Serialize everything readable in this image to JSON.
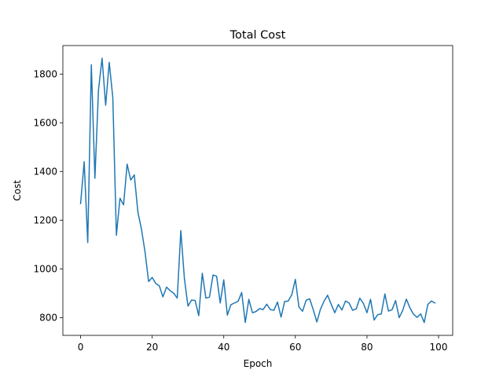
{
  "chart_data": {
    "type": "line",
    "title": "Total Cost",
    "xlabel": "Epoch",
    "ylabel": "Cost",
    "xlim": [
      -4.95,
      103.95
    ],
    "ylim": [
      727,
      1917
    ],
    "xticks": [
      0,
      20,
      40,
      60,
      80,
      100
    ],
    "yticks": [
      800,
      1000,
      1200,
      1400,
      1600,
      1800
    ],
    "grid": false,
    "legend": "none",
    "series": [
      {
        "color": "#1f77b4",
        "x": [
          0,
          1,
          2,
          3,
          4,
          5,
          6,
          7,
          8,
          9,
          10,
          11,
          12,
          13,
          14,
          15,
          16,
          17,
          18,
          19,
          20,
          21,
          22,
          23,
          24,
          25,
          26,
          27,
          28,
          29,
          30,
          31,
          32,
          33,
          34,
          35,
          36,
          37,
          38,
          39,
          40,
          41,
          42,
          43,
          44,
          45,
          46,
          47,
          48,
          49,
          50,
          51,
          52,
          53,
          54,
          55,
          56,
          57,
          58,
          59,
          60,
          61,
          62,
          63,
          64,
          65,
          66,
          67,
          68,
          69,
          70,
          71,
          72,
          73,
          74,
          75,
          76,
          77,
          78,
          79,
          80,
          81,
          82,
          83,
          84,
          85,
          86,
          87,
          88,
          89,
          90,
          91,
          92,
          93,
          94,
          95,
          96,
          97,
          98,
          99
        ],
        "values": [
          1268,
          1440,
          1108,
          1838,
          1372,
          1735,
          1865,
          1672,
          1848,
          1703,
          1138,
          1290,
          1263,
          1430,
          1365,
          1386,
          1234,
          1163,
          1070,
          948,
          965,
          940,
          930,
          885,
          925,
          911,
          900,
          880,
          1157,
          960,
          847,
          872,
          870,
          808,
          982,
          880,
          884,
          975,
          970,
          860,
          955,
          810,
          853,
          860,
          867,
          903,
          780,
          875,
          820,
          825,
          837,
          833,
          855,
          833,
          830,
          864,
          802,
          866,
          868,
          894,
          957,
          843,
          826,
          871,
          877,
          832,
          782,
          834,
          867,
          892,
          855,
          820,
          854,
          831,
          868,
          860,
          830,
          836,
          880,
          858,
          820,
          875,
          790,
          812,
          815,
          897,
          827,
          832,
          870,
          800,
          830,
          876,
          840,
          814,
          801,
          815,
          780,
          854,
          868,
          860
        ]
      }
    ]
  }
}
